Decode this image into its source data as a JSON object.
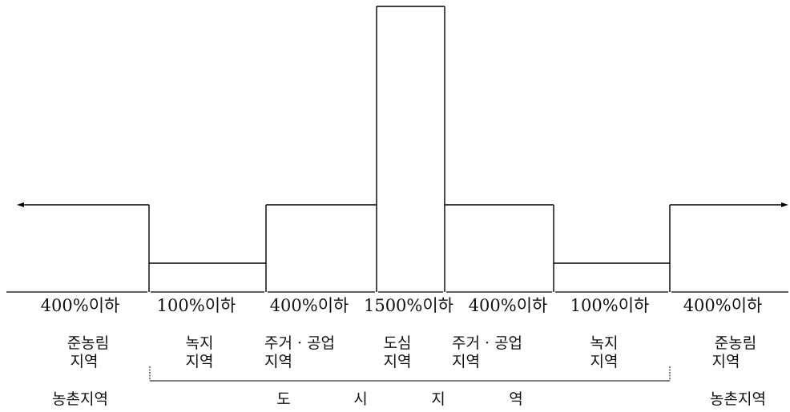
{
  "segments": [
    {
      "level": 3,
      "rate": "400%이하",
      "zone_line1": "준농림",
      "zone_line2": "지역"
    },
    {
      "level": 1,
      "rate": "100%이하",
      "zone_line1": "녹지",
      "zone_line2": "지역"
    },
    {
      "level": 3,
      "rate": "400%이하",
      "zone_line1": "주거 · 공업",
      "zone_line2": "지역"
    },
    {
      "level": 15,
      "rate": "1500%이하",
      "zone_line1": "도심",
      "zone_line2": "지역"
    },
    {
      "level": 3,
      "rate": "400%이하",
      "zone_line1": "주거 · 공업",
      "zone_line2": "지역"
    },
    {
      "level": 1,
      "rate": "100%이하",
      "zone_line1": "녹지",
      "zone_line2": "지역"
    },
    {
      "level": 3,
      "rate": "400%이하",
      "zone_line1": "준농림",
      "zone_line2": "지역"
    }
  ],
  "groups": {
    "left_rural": "농촌지역",
    "urban_chars": [
      "도",
      "시",
      "지",
      "역"
    ],
    "right_rural": "농촌지역"
  },
  "colors": {
    "line": "#000000",
    "text": "#111111"
  }
}
